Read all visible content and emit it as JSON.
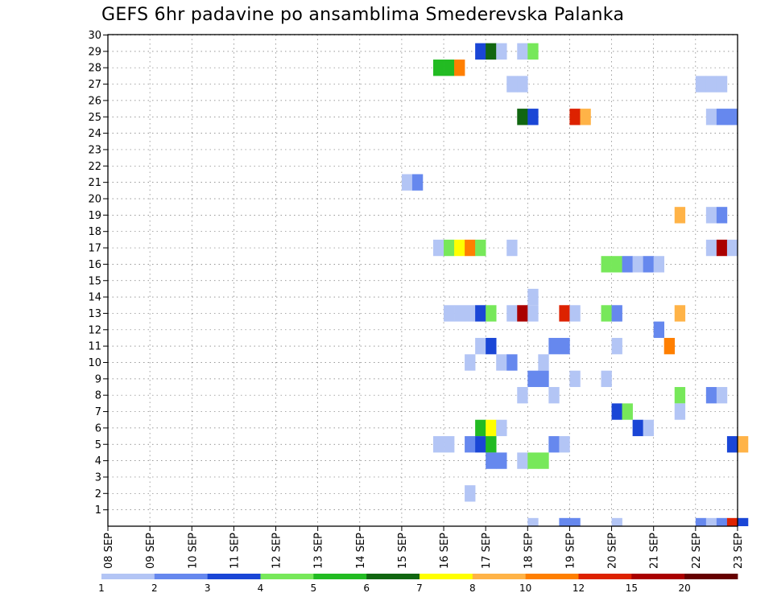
{
  "chart_data": {
    "type": "heatmap",
    "title": "GEFS 6hr padavine po ansamblima Smederevska Palanka",
    "x_ticks": [
      "08 SEP",
      "09 SEP",
      "10 SEP",
      "11 SEP",
      "12 SEP",
      "13 SEP",
      "14 SEP",
      "15 SEP",
      "16 SEP",
      "17 SEP",
      "18 SEP",
      "19 SEP",
      "20 SEP",
      "21 SEP",
      "22 SEP",
      "23 SEP"
    ],
    "y_ticks": [
      "1",
      "2",
      "3",
      "4",
      "5",
      "6",
      "7",
      "8",
      "9",
      "10",
      "11",
      "12",
      "13",
      "14",
      "15",
      "16",
      "17",
      "18",
      "19",
      "20",
      "21",
      "22",
      "23",
      "24",
      "25",
      "26",
      "27",
      "28",
      "29",
      "30"
    ],
    "xlim": [
      "2023-09-08 00Z",
      "2023-09-23 06Z"
    ],
    "ylim": [
      0,
      30
    ],
    "grid": true,
    "time_step_hours": 6,
    "colorbar": {
      "bounds": [
        "1",
        "2",
        "3",
        "4",
        "5",
        "6",
        "7",
        "8",
        "10",
        "12",
        "15",
        "20"
      ],
      "colors": [
        "#b3c5f5",
        "#6688ee",
        "#1a46d6",
        "#77e85a",
        "#22bb22",
        "#116611",
        "#ffff00",
        "#ffb347",
        "#ff7f00",
        "#dd2200",
        "#aa0000",
        "#660000"
      ]
    },
    "series": [
      {
        "member": 29,
        "cells": [
          {
            "t": "2023-09-16 18Z",
            "v": 3
          },
          {
            "t": "2023-09-17 00Z",
            "v": 6
          },
          {
            "t": "2023-09-17 06Z",
            "v": 1
          },
          {
            "t": "2023-09-17 18Z",
            "v": 1
          },
          {
            "t": "2023-09-18 00Z",
            "v": 4
          }
        ]
      },
      {
        "member": 28,
        "cells": [
          {
            "t": "2023-09-15 18Z",
            "v": 5
          },
          {
            "t": "2023-09-16 00Z",
            "v": 5
          },
          {
            "t": "2023-09-16 06Z",
            "v": 10
          }
        ]
      },
      {
        "member": 27,
        "cells": [
          {
            "t": "2023-09-17 12Z",
            "v": 1
          },
          {
            "t": "2023-09-17 18Z",
            "v": 1
          },
          {
            "t": "2023-09-22 00Z",
            "v": 1
          },
          {
            "t": "2023-09-22 06Z",
            "v": 1
          },
          {
            "t": "2023-09-22 12Z",
            "v": 1
          }
        ]
      },
      {
        "member": 25,
        "cells": [
          {
            "t": "2023-09-17 18Z",
            "v": 6
          },
          {
            "t": "2023-09-18 00Z",
            "v": 3
          },
          {
            "t": "2023-09-19 00Z",
            "v": 12
          },
          {
            "t": "2023-09-19 06Z",
            "v": 8
          },
          {
            "t": "2023-09-22 06Z",
            "v": 1
          },
          {
            "t": "2023-09-22 12Z",
            "v": 2
          },
          {
            "t": "2023-09-22 18Z",
            "v": 2
          }
        ]
      },
      {
        "member": 21,
        "cells": [
          {
            "t": "2023-09-15 00Z",
            "v": 1
          },
          {
            "t": "2023-09-15 06Z",
            "v": 2
          }
        ]
      },
      {
        "member": 19,
        "cells": [
          {
            "t": "2023-09-21 12Z",
            "v": 8
          },
          {
            "t": "2023-09-22 06Z",
            "v": 1
          },
          {
            "t": "2023-09-22 12Z",
            "v": 2
          }
        ]
      },
      {
        "member": 17,
        "cells": [
          {
            "t": "2023-09-15 18Z",
            "v": 1
          },
          {
            "t": "2023-09-16 00Z",
            "v": 4
          },
          {
            "t": "2023-09-16 06Z",
            "v": 7
          },
          {
            "t": "2023-09-16 12Z",
            "v": 10
          },
          {
            "t": "2023-09-16 18Z",
            "v": 4
          },
          {
            "t": "2023-09-17 12Z",
            "v": 1
          },
          {
            "t": "2023-09-22 06Z",
            "v": 1
          },
          {
            "t": "2023-09-22 12Z",
            "v": 15
          },
          {
            "t": "2023-09-22 18Z",
            "v": 1
          }
        ]
      },
      {
        "member": 16,
        "cells": [
          {
            "t": "2023-09-19 18Z",
            "v": 4
          },
          {
            "t": "2023-09-20 00Z",
            "v": 4
          },
          {
            "t": "2023-09-20 06Z",
            "v": 2
          },
          {
            "t": "2023-09-20 12Z",
            "v": 1
          },
          {
            "t": "2023-09-20 18Z",
            "v": 2
          },
          {
            "t": "2023-09-21 00Z",
            "v": 1
          }
        ]
      },
      {
        "member": 14,
        "cells": [
          {
            "t": "2023-09-18 00Z",
            "v": 1
          }
        ]
      },
      {
        "member": 13,
        "cells": [
          {
            "t": "2023-09-16 00Z",
            "v": 1
          },
          {
            "t": "2023-09-16 06Z",
            "v": 1
          },
          {
            "t": "2023-09-16 12Z",
            "v": 1
          },
          {
            "t": "2023-09-16 18Z",
            "v": 3
          },
          {
            "t": "2023-09-17 00Z",
            "v": 4
          },
          {
            "t": "2023-09-17 12Z",
            "v": 1
          },
          {
            "t": "2023-09-17 18Z",
            "v": 15
          },
          {
            "t": "2023-09-18 00Z",
            "v": 1
          },
          {
            "t": "2023-09-18 18Z",
            "v": 12
          },
          {
            "t": "2023-09-19 00Z",
            "v": 1
          },
          {
            "t": "2023-09-19 18Z",
            "v": 4
          },
          {
            "t": "2023-09-20 00Z",
            "v": 2
          },
          {
            "t": "2023-09-21 12Z",
            "v": 8
          }
        ]
      },
      {
        "member": 12,
        "cells": [
          {
            "t": "2023-09-21 00Z",
            "v": 2
          }
        ]
      },
      {
        "member": 11,
        "cells": [
          {
            "t": "2023-09-16 18Z",
            "v": 1
          },
          {
            "t": "2023-09-17 00Z",
            "v": 3
          },
          {
            "t": "2023-09-18 12Z",
            "v": 2
          },
          {
            "t": "2023-09-18 18Z",
            "v": 2
          },
          {
            "t": "2023-09-20 00Z",
            "v": 1
          },
          {
            "t": "2023-09-21 06Z",
            "v": 10
          }
        ]
      },
      {
        "member": 10,
        "cells": [
          {
            "t": "2023-09-16 12Z",
            "v": 1
          },
          {
            "t": "2023-09-17 06Z",
            "v": 1
          },
          {
            "t": "2023-09-17 12Z",
            "v": 2
          },
          {
            "t": "2023-09-18 06Z",
            "v": 1
          }
        ]
      },
      {
        "member": 9,
        "cells": [
          {
            "t": "2023-09-18 00Z",
            "v": 2
          },
          {
            "t": "2023-09-18 06Z",
            "v": 2
          },
          {
            "t": "2023-09-19 00Z",
            "v": 1
          },
          {
            "t": "2023-09-19 18Z",
            "v": 1
          }
        ]
      },
      {
        "member": 8,
        "cells": [
          {
            "t": "2023-09-17 18Z",
            "v": 1
          },
          {
            "t": "2023-09-18 12Z",
            "v": 1
          },
          {
            "t": "2023-09-21 12Z",
            "v": 4
          },
          {
            "t": "2023-09-22 06Z",
            "v": 2
          },
          {
            "t": "2023-09-22 12Z",
            "v": 1
          }
        ]
      },
      {
        "member": 7,
        "cells": [
          {
            "t": "2023-09-20 00Z",
            "v": 3
          },
          {
            "t": "2023-09-20 06Z",
            "v": 4
          },
          {
            "t": "2023-09-21 12Z",
            "v": 1
          }
        ]
      },
      {
        "member": 6,
        "cells": [
          {
            "t": "2023-09-16 18Z",
            "v": 5
          },
          {
            "t": "2023-09-17 00Z",
            "v": 7
          },
          {
            "t": "2023-09-17 06Z",
            "v": 1
          },
          {
            "t": "2023-09-20 12Z",
            "v": 3
          },
          {
            "t": "2023-09-20 18Z",
            "v": 1
          }
        ]
      },
      {
        "member": 5,
        "cells": [
          {
            "t": "2023-09-15 18Z",
            "v": 1
          },
          {
            "t": "2023-09-16 00Z",
            "v": 1
          },
          {
            "t": "2023-09-16 12Z",
            "v": 2
          },
          {
            "t": "2023-09-16 18Z",
            "v": 3
          },
          {
            "t": "2023-09-17 00Z",
            "v": 5
          },
          {
            "t": "2023-09-18 12Z",
            "v": 2
          },
          {
            "t": "2023-09-18 18Z",
            "v": 1
          },
          {
            "t": "2023-09-22 18Z",
            "v": 3
          },
          {
            "t": "2023-09-23 00Z",
            "v": 8
          }
        ]
      },
      {
        "member": 4,
        "cells": [
          {
            "t": "2023-09-17 00Z",
            "v": 2
          },
          {
            "t": "2023-09-17 06Z",
            "v": 2
          },
          {
            "t": "2023-09-17 18Z",
            "v": 1
          },
          {
            "t": "2023-09-18 00Z",
            "v": 4
          },
          {
            "t": "2023-09-18 06Z",
            "v": 4
          }
        ]
      },
      {
        "member": 2,
        "cells": [
          {
            "t": "2023-09-16 12Z",
            "v": 1
          }
        ]
      },
      {
        "member": 0,
        "cells": [
          {
            "t": "2023-09-18 00Z",
            "v": 1
          },
          {
            "t": "2023-09-18 18Z",
            "v": 2
          },
          {
            "t": "2023-09-19 00Z",
            "v": 2
          },
          {
            "t": "2023-09-20 00Z",
            "v": 1
          },
          {
            "t": "2023-09-22 00Z",
            "v": 2
          },
          {
            "t": "2023-09-22 06Z",
            "v": 1
          },
          {
            "t": "2023-09-22 12Z",
            "v": 2
          },
          {
            "t": "2023-09-22 18Z",
            "v": 12
          },
          {
            "t": "2023-09-23 00Z",
            "v": 3
          }
        ]
      }
    ]
  }
}
